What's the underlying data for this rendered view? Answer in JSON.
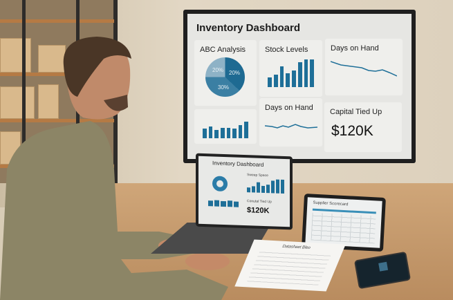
{
  "tv_dashboard": {
    "title": "Inventory Dashboard",
    "abc_analysis": {
      "title": "ABC Analysis",
      "slices": [
        "20%",
        "20%",
        "30%"
      ]
    },
    "stock_levels": {
      "title": "Stock Levels",
      "bar_levels": [
        0.35,
        0.45,
        0.75,
        0.5,
        0.6,
        0.9,
        1.0,
        1.0
      ]
    },
    "days_on_hand_top": {
      "title": "Days on Hand"
    },
    "bottom_left_bars": {
      "bar_levels": [
        0.55,
        0.7,
        0.5,
        0.6,
        0.6,
        0.55,
        0.75,
        0.95
      ]
    },
    "days_on_hand_bottom": {
      "title": "Days on Hand"
    },
    "capital_tied_up": {
      "title": "Capital Tied Up",
      "value": "$120K"
    },
    "accent_color": "#1e6f98"
  },
  "laptop_dashboard": {
    "title": "Inventory Dashboard",
    "stock_panel_title": "Sweep Space",
    "capital_title": "Conutal Tied Up",
    "capital_value": "$120K"
  },
  "tablet": {
    "title": "Supplier Scorecard"
  },
  "paper": {
    "title": "Datasheet Bleo"
  }
}
